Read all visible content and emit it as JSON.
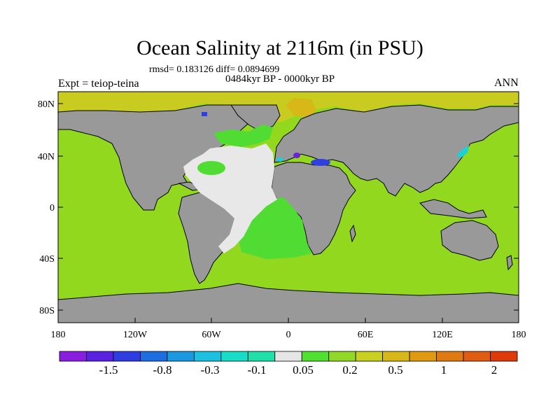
{
  "title": "Ocean Salinity at 2116m (in PSU)",
  "stats": "rmsd= 0.183126 diff= 0.0894699",
  "period": "0484kyr BP - 0000kyr BP",
  "experiment": "Expt = teiop-teina",
  "season": "ANN",
  "lat_ticks": [
    "80N",
    "40N",
    "0",
    "40S",
    "80S"
  ],
  "lon_ticks": [
    "180",
    "120W",
    "60W",
    "0",
    "60E",
    "120E",
    "180"
  ],
  "colorbar": {
    "colors": [
      "#8a1ee0",
      "#5a22e0",
      "#2e3ce0",
      "#1c6ee0",
      "#1a98e0",
      "#1cc0e0",
      "#18dcc8",
      "#1ee0a8",
      "#e6e6e6",
      "#50e030",
      "#92d828",
      "#c8d020",
      "#d8b818",
      "#e09a12",
      "#e07a10",
      "#e05c10",
      "#e03a0a"
    ],
    "labels": [
      "-1.5",
      "-0.8",
      "-0.3",
      "-0.1",
      "0.05",
      "0.2",
      "0.5",
      "1",
      "2"
    ]
  },
  "map_colors": {
    "land": "#999999",
    "ocean_main": "#92d81e",
    "atlantic_low": "#e8e8e8",
    "atlantic_mid": "#50dc32",
    "arctic": "#c8cc20",
    "arctic_high": "#d8b818",
    "cyan": "#1cd0d8",
    "blue": "#3040e0",
    "purple": "#7020d8"
  }
}
